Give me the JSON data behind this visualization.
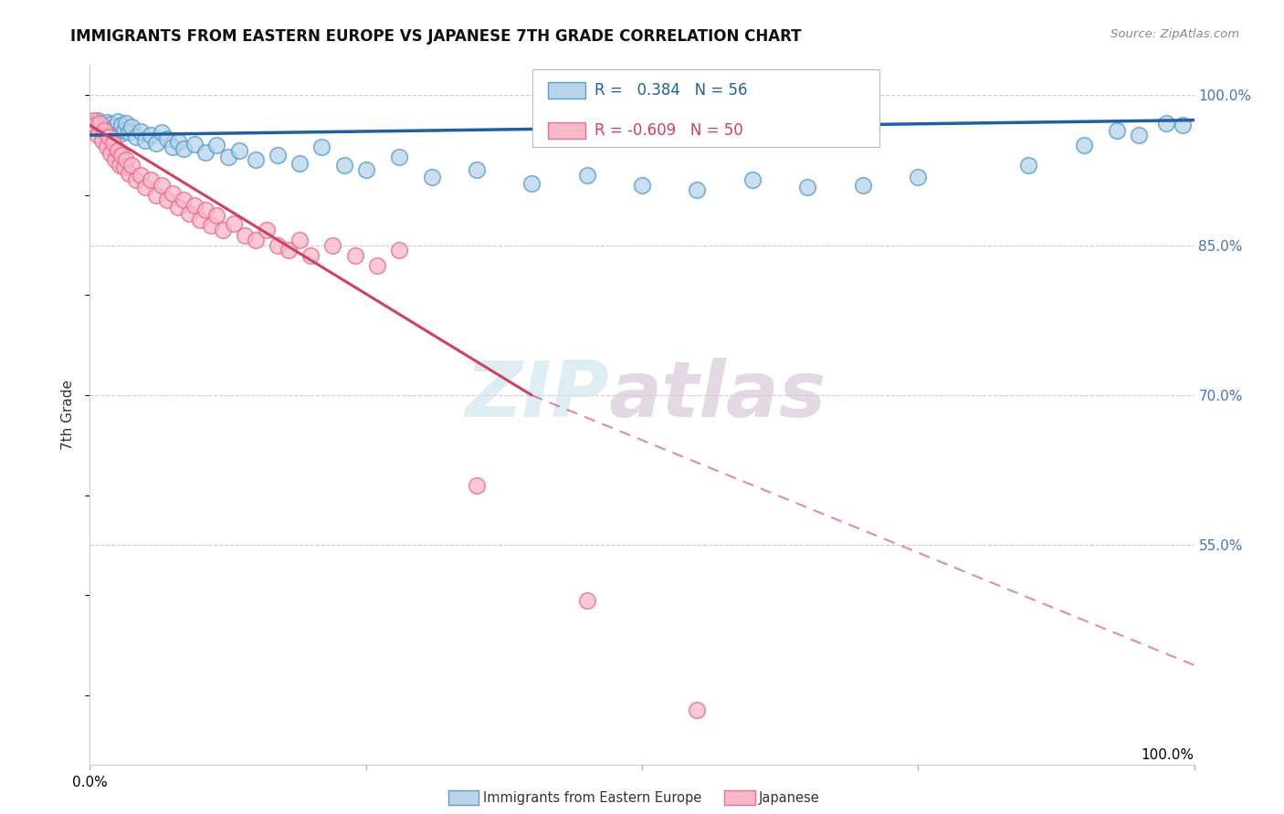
{
  "title": "IMMIGRANTS FROM EASTERN EUROPE VS JAPANESE 7TH GRADE CORRELATION CHART",
  "source": "Source: ZipAtlas.com",
  "ylabel": "7th Grade",
  "legend_blue_label": "Immigrants from Eastern Europe",
  "legend_pink_label": "Japanese",
  "r_blue": 0.384,
  "n_blue": 56,
  "r_pink": -0.609,
  "n_pink": 50,
  "blue_face_color": "#b8d4ea",
  "blue_edge_color": "#5a9ec9",
  "pink_face_color": "#f7b8c8",
  "pink_edge_color": "#e87090",
  "blue_line_color": "#2060a0",
  "pink_line_color": "#d04060",
  "grid_color": "#cccccc",
  "right_tick_color": "#4472c4",
  "blue_scatter": [
    [
      0.3,
      97.2
    ],
    [
      0.5,
      96.8
    ],
    [
      0.7,
      97.5
    ],
    [
      0.9,
      96.5
    ],
    [
      1.1,
      97.0
    ],
    [
      1.3,
      96.2
    ],
    [
      1.5,
      97.3
    ],
    [
      1.7,
      96.0
    ],
    [
      1.9,
      97.1
    ],
    [
      2.1,
      96.4
    ],
    [
      2.3,
      96.9
    ],
    [
      2.5,
      97.4
    ],
    [
      2.7,
      96.1
    ],
    [
      2.9,
      97.0
    ],
    [
      3.1,
      96.5
    ],
    [
      3.3,
      97.2
    ],
    [
      3.5,
      96.3
    ],
    [
      3.8,
      96.8
    ],
    [
      4.2,
      95.8
    ],
    [
      4.6,
      96.4
    ],
    [
      5.0,
      95.5
    ],
    [
      5.5,
      96.0
    ],
    [
      6.0,
      95.2
    ],
    [
      6.5,
      96.3
    ],
    [
      7.0,
      95.6
    ],
    [
      7.5,
      94.8
    ],
    [
      8.0,
      95.4
    ],
    [
      8.5,
      94.6
    ],
    [
      9.5,
      95.1
    ],
    [
      10.5,
      94.3
    ],
    [
      11.5,
      95.0
    ],
    [
      12.5,
      93.8
    ],
    [
      13.5,
      94.5
    ],
    [
      15.0,
      93.5
    ],
    [
      17.0,
      94.0
    ],
    [
      19.0,
      93.2
    ],
    [
      21.0,
      94.8
    ],
    [
      23.0,
      93.0
    ],
    [
      25.0,
      92.5
    ],
    [
      28.0,
      93.8
    ],
    [
      31.0,
      91.8
    ],
    [
      35.0,
      92.5
    ],
    [
      40.0,
      91.2
    ],
    [
      45.0,
      92.0
    ],
    [
      50.0,
      91.0
    ],
    [
      55.0,
      90.5
    ],
    [
      60.0,
      91.5
    ],
    [
      65.0,
      90.8
    ],
    [
      70.0,
      91.0
    ],
    [
      75.0,
      91.8
    ],
    [
      85.0,
      93.0
    ],
    [
      90.0,
      95.0
    ],
    [
      93.0,
      96.5
    ],
    [
      95.0,
      96.0
    ],
    [
      97.5,
      97.2
    ],
    [
      99.0,
      97.0
    ]
  ],
  "pink_scatter": [
    [
      0.3,
      97.5
    ],
    [
      0.5,
      97.0
    ],
    [
      0.7,
      96.0
    ],
    [
      0.9,
      97.2
    ],
    [
      1.1,
      95.5
    ],
    [
      1.3,
      96.5
    ],
    [
      1.5,
      94.8
    ],
    [
      1.7,
      95.8
    ],
    [
      1.9,
      94.2
    ],
    [
      2.1,
      95.2
    ],
    [
      2.3,
      93.5
    ],
    [
      2.5,
      94.5
    ],
    [
      2.7,
      93.0
    ],
    [
      2.9,
      94.0
    ],
    [
      3.1,
      92.8
    ],
    [
      3.3,
      93.5
    ],
    [
      3.5,
      92.2
    ],
    [
      3.8,
      93.0
    ],
    [
      4.2,
      91.5
    ],
    [
      4.6,
      92.0
    ],
    [
      5.0,
      90.8
    ],
    [
      5.5,
      91.5
    ],
    [
      6.0,
      90.0
    ],
    [
      6.5,
      91.0
    ],
    [
      7.0,
      89.5
    ],
    [
      7.5,
      90.2
    ],
    [
      8.0,
      88.8
    ],
    [
      8.5,
      89.5
    ],
    [
      9.0,
      88.2
    ],
    [
      9.5,
      89.0
    ],
    [
      10.0,
      87.5
    ],
    [
      10.5,
      88.5
    ],
    [
      11.0,
      87.0
    ],
    [
      11.5,
      88.0
    ],
    [
      12.0,
      86.5
    ],
    [
      13.0,
      87.2
    ],
    [
      14.0,
      86.0
    ],
    [
      15.0,
      85.5
    ],
    [
      16.0,
      86.5
    ],
    [
      17.0,
      85.0
    ],
    [
      18.0,
      84.5
    ],
    [
      19.0,
      85.5
    ],
    [
      20.0,
      84.0
    ],
    [
      22.0,
      85.0
    ],
    [
      24.0,
      84.0
    ],
    [
      26.0,
      83.0
    ],
    [
      28.0,
      84.5
    ],
    [
      35.0,
      61.0
    ],
    [
      45.0,
      49.5
    ],
    [
      55.0,
      38.5
    ]
  ],
  "xlim": [
    0,
    100
  ],
  "ylim": [
    33,
    103
  ],
  "y_ticks": [
    100.0,
    85.0,
    70.0,
    55.0
  ],
  "y_tick_labels": [
    "100.0%",
    "85.0%",
    "70.0%",
    "55.0%"
  ]
}
